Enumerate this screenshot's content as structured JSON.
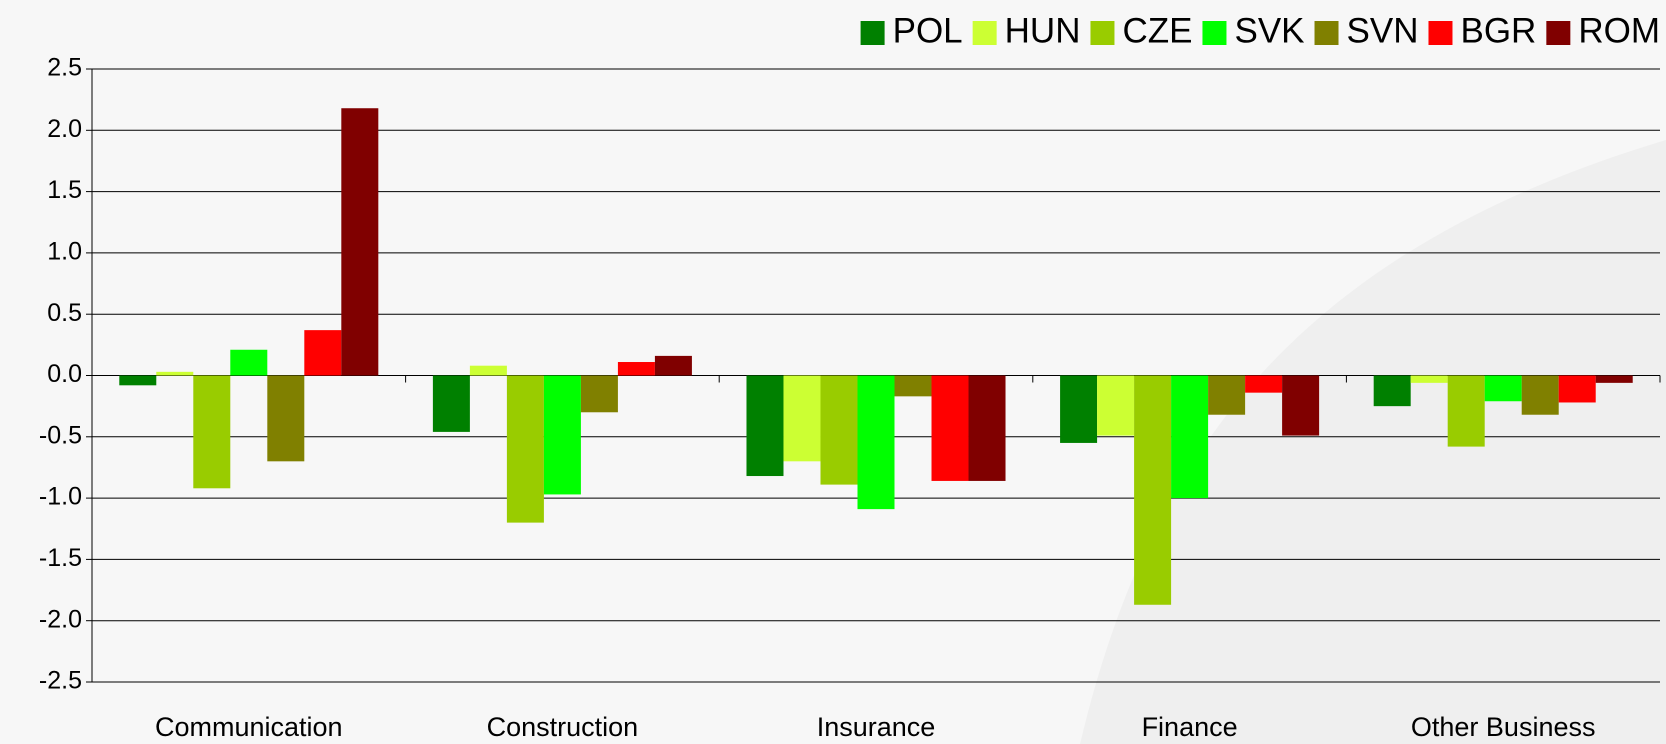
{
  "chart_data": {
    "type": "bar",
    "categories": [
      "Communication",
      "Construction",
      "Insurance",
      "Finance",
      "Other Business"
    ],
    "series": [
      {
        "name": "POL",
        "color": "#008000",
        "values": [
          -0.08,
          -0.46,
          -0.82,
          -0.55,
          -0.25
        ]
      },
      {
        "name": "HUN",
        "color": "#ccff33",
        "values": [
          0.03,
          0.08,
          -0.7,
          -0.49,
          -0.06
        ]
      },
      {
        "name": "CZE",
        "color": "#99cc00",
        "values": [
          -0.92,
          -1.2,
          -0.89,
          -1.87,
          -0.58
        ]
      },
      {
        "name": "SVK",
        "color": "#00ff00",
        "values": [
          0.21,
          -0.97,
          -1.09,
          -1.0,
          -0.21
        ]
      },
      {
        "name": "SVN",
        "color": "#808000",
        "values": [
          -0.7,
          -0.3,
          -0.17,
          -0.32,
          -0.32
        ]
      },
      {
        "name": "BGR",
        "color": "#ff0000",
        "values": [
          0.37,
          0.11,
          -0.86,
          -0.14,
          -0.22
        ]
      },
      {
        "name": "ROM",
        "color": "#800000",
        "values": [
          2.18,
          0.16,
          -0.86,
          -0.49,
          -0.06
        ]
      }
    ],
    "ylim": [
      -2.5,
      2.5
    ],
    "yticks": [
      2.5,
      {
        "value": 2,
        "label": "2.0"
      },
      1.5,
      {
        "value": 1,
        "label": "1.0"
      },
      0.5,
      {
        "value": 0,
        "label": "0.0"
      },
      -0.5,
      {
        "value": -1,
        "label": "-1.0"
      },
      -1.5,
      {
        "value": -2,
        "label": "-2.0"
      },
      -2.5
    ],
    "grid": true,
    "legend": "top-right"
  }
}
